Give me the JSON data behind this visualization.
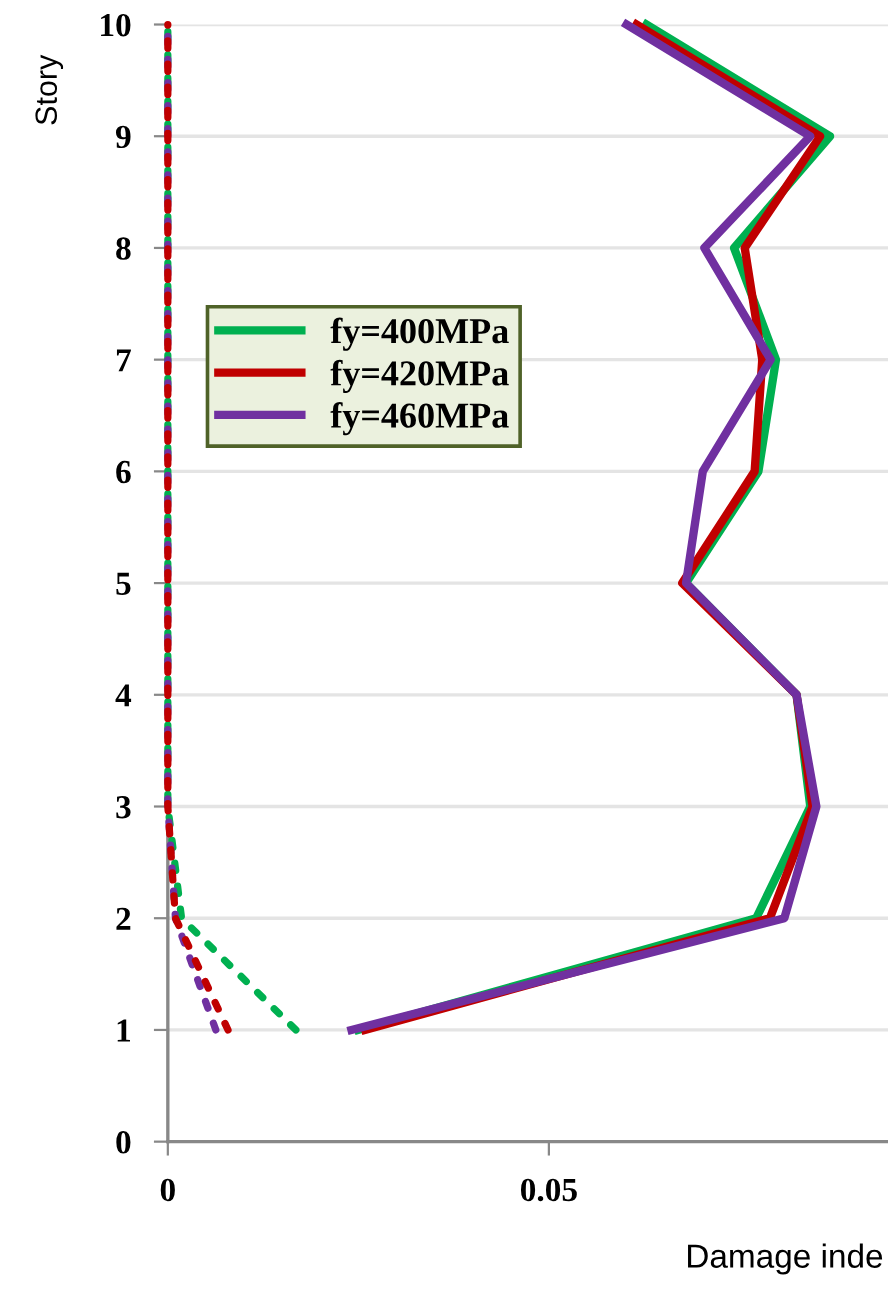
{
  "chart_data": {
    "type": "line",
    "xlabel": "Damage inde",
    "ylabel": "Story",
    "xlim": [
      0,
      0.0945
    ],
    "xticks": [
      0,
      0.05
    ],
    "ylim": [
      0,
      10
    ],
    "yticks": [
      0,
      1,
      2,
      3,
      4,
      5,
      6,
      7,
      8,
      9,
      10
    ],
    "grid": "y",
    "legend": "left",
    "line_style": "solid",
    "marker": "none",
    "series": [
      {
        "name": "fy=400MPa",
        "color": "#00b050",
        "x": [
          0.025,
          0.0772,
          0.0843,
          0.0825,
          0.068,
          0.0775,
          0.0798,
          0.0743,
          0.0869,
          0.0628
        ],
        "values": [
          1,
          2,
          3,
          4,
          5,
          6,
          7,
          8,
          9,
          10
        ]
      },
      {
        "name": "fy=420MPa",
        "color": "#c00000",
        "x": [
          0.0259,
          0.079,
          0.0846,
          0.0825,
          0.0675,
          0.077,
          0.078,
          0.0757,
          0.0856,
          0.0615
        ],
        "values": [
          1,
          2,
          3,
          4,
          5,
          6,
          7,
          8,
          9,
          10
        ]
      },
      {
        "name": "fy=460MPa",
        "color": "#7030a0",
        "x": [
          0.0241,
          0.0809,
          0.0851,
          0.0825,
          0.068,
          0.0702,
          0.0791,
          0.0704,
          0.0843,
          0.0602
        ],
        "values": [
          1,
          2,
          3,
          4,
          5,
          6,
          7,
          8,
          9,
          10
        ]
      },
      {
        "color": "#00b050",
        "line_style": "dotted",
        "x": [
          0.0168,
          0.0018,
          0,
          0,
          0,
          0,
          0,
          0,
          0,
          0
        ],
        "values": [
          1,
          2,
          3,
          4,
          5,
          6,
          7,
          8,
          9,
          10
        ]
      },
      {
        "color": "#7030a0",
        "line_style": "dotted",
        "x": [
          0.0063,
          0.001,
          0,
          0,
          0,
          0,
          0,
          0,
          0,
          0
        ],
        "values": [
          1,
          2,
          3,
          4,
          5,
          6,
          7,
          8,
          9,
          10
        ]
      },
      {
        "color": "#c00000",
        "line_style": "dotted",
        "x": [
          0.0079,
          0.001,
          0,
          0,
          0,
          0,
          0,
          0,
          0,
          0
        ],
        "values": [
          1,
          2,
          3,
          4,
          5,
          6,
          7,
          8,
          9,
          10
        ]
      }
    ]
  }
}
